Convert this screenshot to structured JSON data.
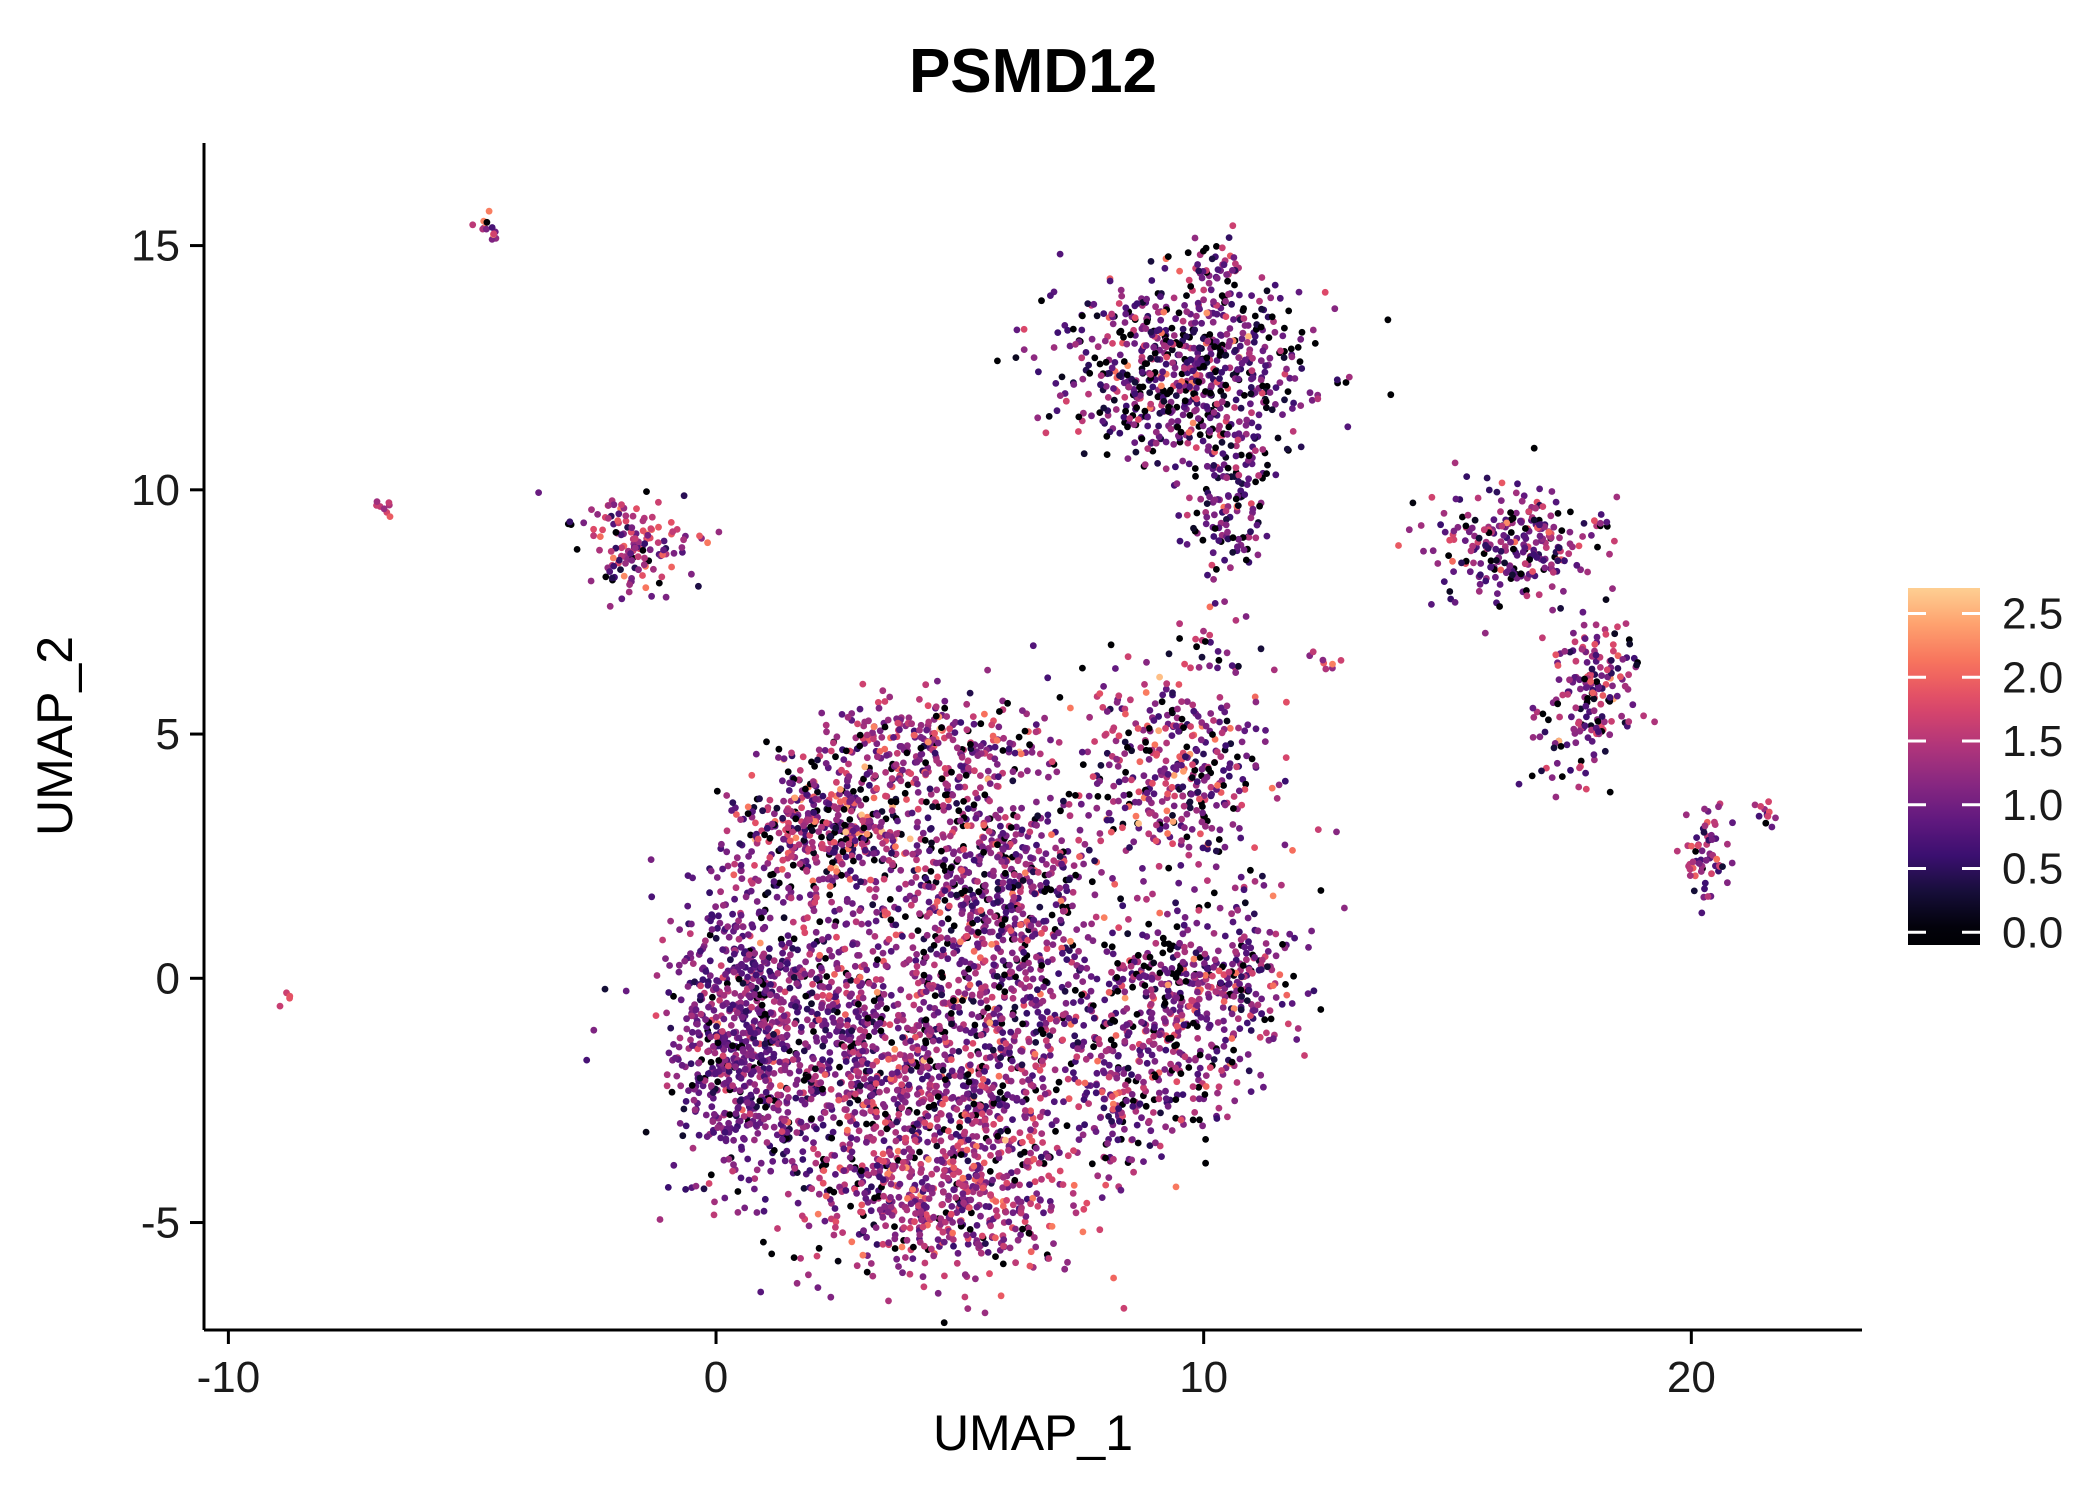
{
  "chart_data": {
    "type": "scatter",
    "title": "PSMD12",
    "xlabel": "UMAP_1",
    "ylabel": "UMAP_2",
    "xlim": [
      -10.5,
      23.5
    ],
    "ylim": [
      -7.2,
      17.1
    ],
    "grid": false,
    "x_ticks": {
      "values": [
        -10,
        0,
        10,
        20
      ],
      "labels": [
        "-10",
        "0",
        "10",
        "20"
      ]
    },
    "y_ticks": {
      "values": [
        -5,
        0,
        5,
        10,
        15
      ],
      "labels": [
        "-5",
        "0",
        "5",
        "10",
        "15"
      ]
    },
    "legend": {
      "position": "right",
      "tick_labels": [
        "2.5",
        "2.0",
        "1.5",
        "1.0",
        "0.5",
        "0.0"
      ],
      "tick_values": [
        2.5,
        2.0,
        1.5,
        1.0,
        0.5,
        0.0
      ],
      "bar_domain": [
        -0.1,
        2.7
      ]
    },
    "colormap": {
      "name": "magma",
      "scale_max": 3.0,
      "stops": [
        "#000004",
        "#140E36",
        "#3B0F70",
        "#641A80",
        "#8C2981",
        "#B73779",
        "#DE4968",
        "#F7705C",
        "#FE9F6D",
        "#FECF92",
        "#FCFDBF"
      ]
    },
    "point_radius": 3.4,
    "seed": 42,
    "clusters": [
      {
        "name": "core-left",
        "cx": 1.8,
        "cy": -1.2,
        "sx": 1.5,
        "sy": 1.7,
        "n": 850,
        "mean": 1.05,
        "sd": 0.4,
        "zero": 0.08,
        "rot": 0
      },
      {
        "name": "core-right",
        "cx": 4.6,
        "cy": -2.2,
        "sx": 1.5,
        "sy": 1.6,
        "n": 850,
        "mean": 1.25,
        "sd": 0.45,
        "zero": 0.1,
        "rot": 0
      },
      {
        "name": "bottom-lobe",
        "cx": 4.9,
        "cy": -4.7,
        "sx": 1.3,
        "sy": 0.8,
        "n": 380,
        "mean": 1.4,
        "sd": 0.4,
        "zero": 0.06,
        "rot": 0
      },
      {
        "name": "left-edge",
        "cx": 0.4,
        "cy": -1.0,
        "sx": 0.55,
        "sy": 1.5,
        "n": 420,
        "mean": 0.95,
        "sd": 0.3,
        "zero": 0.08,
        "rot": 0
      },
      {
        "name": "upper-dense",
        "cx": 2.3,
        "cy": 3.1,
        "sx": 0.9,
        "sy": 0.7,
        "n": 420,
        "mean": 1.3,
        "sd": 0.6,
        "zero": 0.15,
        "rot": 0
      },
      {
        "name": "top-lobe",
        "cx": 4.4,
        "cy": 4.7,
        "sx": 1.1,
        "sy": 0.55,
        "n": 280,
        "mean": 1.3,
        "sd": 0.45,
        "zero": 0.1,
        "rot": 0
      },
      {
        "name": "mid-column",
        "cx": 6.3,
        "cy": 0.8,
        "sx": 0.9,
        "sy": 1.8,
        "n": 420,
        "mean": 1.1,
        "sd": 0.45,
        "zero": 0.12,
        "rot": 0
      },
      {
        "name": "neck",
        "cx": 5.2,
        "cy": 2.2,
        "sx": 1.1,
        "sy": 1.0,
        "n": 300,
        "mean": 1.1,
        "sd": 0.45,
        "zero": 0.12,
        "rot": 0
      },
      {
        "name": "east-blob",
        "cx": 9.3,
        "cy": -0.6,
        "sx": 1.0,
        "sy": 1.1,
        "n": 430,
        "mean": 1.15,
        "sd": 0.45,
        "zero": 0.12,
        "rot": 0
      },
      {
        "name": "east-blob-ext",
        "cx": 10.9,
        "cy": 0.3,
        "sx": 0.6,
        "sy": 0.9,
        "n": 140,
        "mean": 1.1,
        "sd": 0.45,
        "zero": 0.12,
        "rot": 0
      },
      {
        "name": "east-blob-low",
        "cx": 8.3,
        "cy": -2.6,
        "sx": 0.7,
        "sy": 0.8,
        "n": 130,
        "mean": 1.0,
        "sd": 0.5,
        "zero": 0.15,
        "rot": 0
      },
      {
        "name": "mid-east",
        "cx": 9.4,
        "cy": 4.2,
        "sx": 1.0,
        "sy": 1.0,
        "n": 380,
        "mean": 1.2,
        "sd": 0.5,
        "zero": 0.12,
        "rot": 0
      },
      {
        "name": "top-main",
        "cx": 9.6,
        "cy": 12.4,
        "sx": 1.25,
        "sy": 0.95,
        "n": 720,
        "mean": 0.9,
        "sd": 0.55,
        "zero": 0.17,
        "rot": 0
      },
      {
        "name": "top-tail",
        "cx": 10.6,
        "cy": 9.9,
        "sx": 0.45,
        "sy": 1.0,
        "n": 130,
        "mean": 0.95,
        "sd": 0.5,
        "zero": 0.15,
        "rot": 0
      },
      {
        "name": "top-knot",
        "cx": 10.2,
        "cy": 14.4,
        "sx": 0.3,
        "sy": 0.4,
        "n": 45,
        "mean": 1.1,
        "sd": 0.5,
        "zero": 0.1,
        "rot": 0
      },
      {
        "name": "left-small",
        "cx": -1.7,
        "cy": 8.9,
        "sx": 0.6,
        "sy": 0.5,
        "n": 140,
        "mean": 1.3,
        "sd": 0.5,
        "zero": 0.08,
        "rot": 0
      },
      {
        "name": "right-upper",
        "cx": 16.3,
        "cy": 8.9,
        "sx": 0.85,
        "sy": 0.6,
        "n": 260,
        "mean": 1.1,
        "sd": 0.5,
        "zero": 0.12,
        "rot": 0
      },
      {
        "name": "right-mid",
        "cx": 17.9,
        "cy": 5.7,
        "sx": 0.5,
        "sy": 0.85,
        "n": 190,
        "mean": 1.2,
        "sd": 0.5,
        "zero": 0.1,
        "rot": -20
      },
      {
        "name": "right-small",
        "cx": 20.3,
        "cy": 2.4,
        "sx": 0.28,
        "sy": 0.55,
        "n": 60,
        "mean": 1.3,
        "sd": 0.5,
        "zero": 0.08,
        "rot": 0
      },
      {
        "name": "right-tiny",
        "cx": 21.4,
        "cy": 3.4,
        "sx": 0.22,
        "sy": 0.12,
        "n": 12,
        "mean": 1.2,
        "sd": 0.4,
        "zero": 0.05,
        "rot": -35
      },
      {
        "name": "bridge-pts",
        "cx": 10.3,
        "cy": 6.9,
        "sx": 0.5,
        "sy": 0.5,
        "n": 25,
        "mean": 1.2,
        "sd": 0.5,
        "zero": 0.1,
        "rot": 0
      },
      {
        "name": "pair-mid",
        "cx": 12.6,
        "cy": 6.5,
        "sx": 0.25,
        "sy": 0.12,
        "n": 8,
        "mean": 1.5,
        "sd": 0.3,
        "zero": 0.0,
        "rot": 0
      },
      {
        "name": "speck-topleft",
        "cx": -4.75,
        "cy": 15.4,
        "sx": 0.18,
        "sy": 0.1,
        "n": 14,
        "mean": 1.5,
        "sd": 0.4,
        "zero": 0.05,
        "rot": -30
      },
      {
        "name": "speck-left",
        "cx": -6.85,
        "cy": 9.7,
        "sx": 0.12,
        "sy": 0.08,
        "n": 8,
        "mean": 1.6,
        "sd": 0.3,
        "zero": 0.0,
        "rot": -20
      },
      {
        "name": "speck-farleft",
        "cx": -8.7,
        "cy": -0.45,
        "sx": 0.08,
        "sy": 0.07,
        "n": 4,
        "mean": 1.5,
        "sd": 0.2,
        "zero": 0.0,
        "rot": 0
      }
    ]
  }
}
